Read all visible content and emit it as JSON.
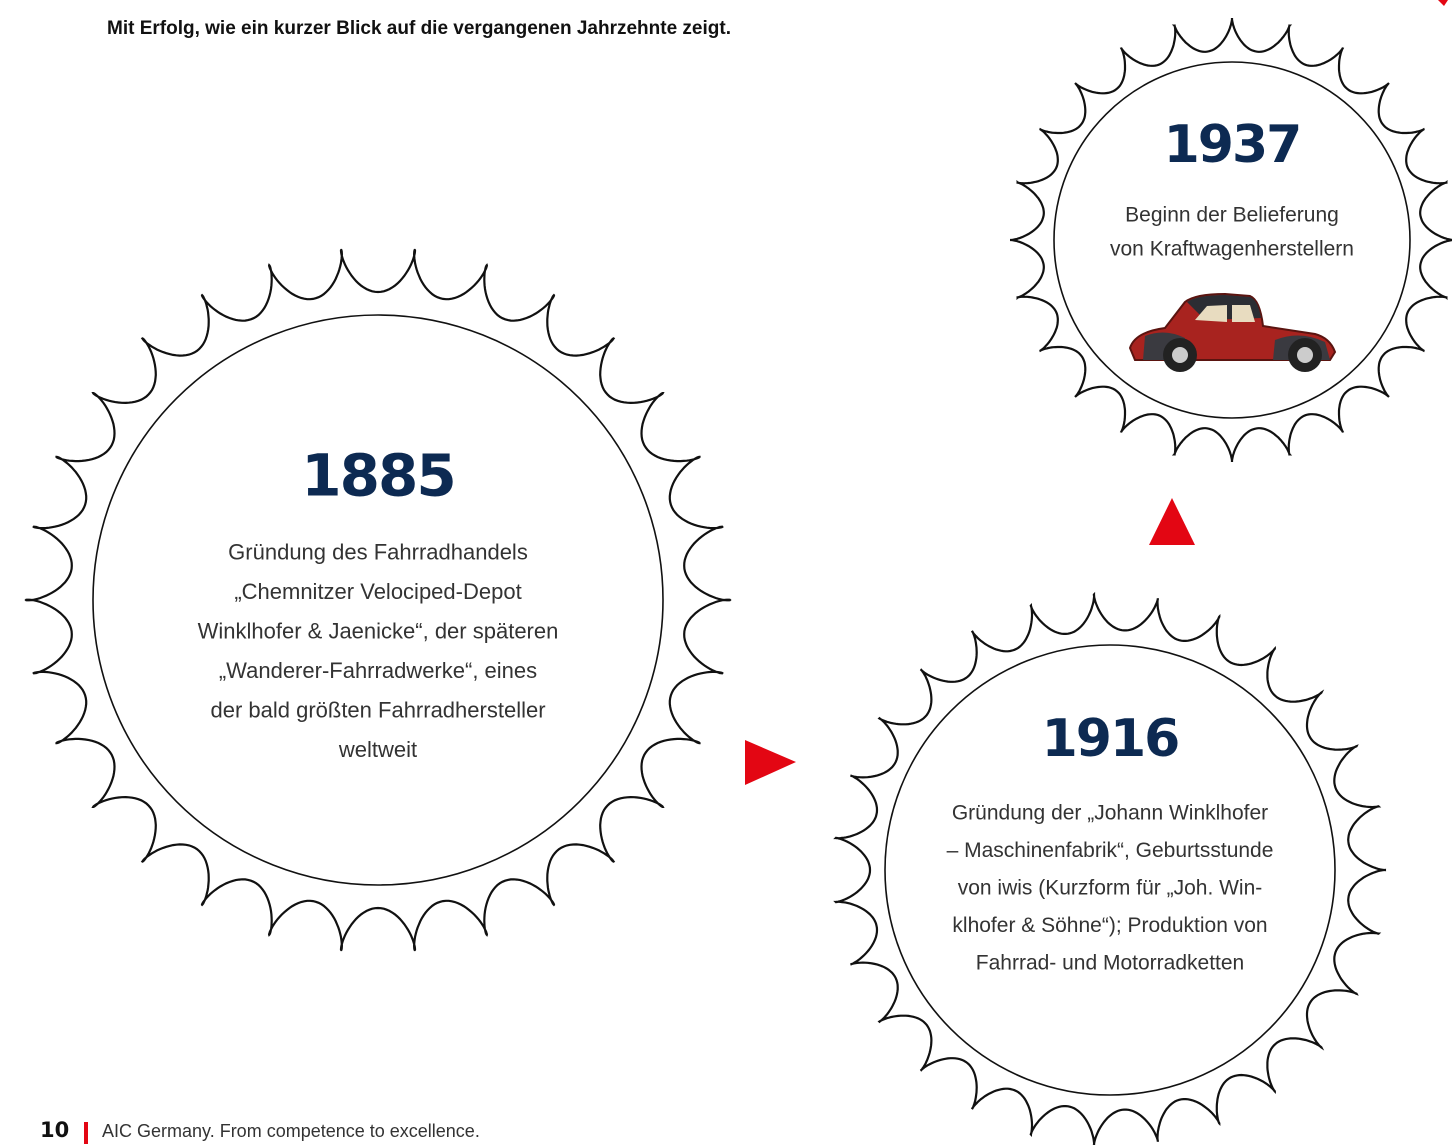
{
  "intro": "Mit Erfolg, wie ein kurzer Blick auf die vergangenen Jahrzehnte zeigt.",
  "milestones": [
    {
      "year": "1885",
      "lines": [
        "Gründung des Fahrradhandels",
        "„Chemnitzer Velociped-Depot",
        "Winklhofer & Jaenicke“, der späteren",
        "„Wanderer-Fahrradwerke“, eines",
        "der bald größten Fahrradhersteller",
        "weltweit"
      ]
    },
    {
      "year": "1916",
      "lines": [
        "Gründung der „Johann Winklhofer",
        "– Maschinenfabrik“, Geburtsstunde",
        "von iwis (Kurzform für „Joh. Win-",
        "klhofer & Söhne“); Produktion von",
        "Fahrrad- und Motorradketten"
      ]
    },
    {
      "year": "1937",
      "lines": [
        "Beginn der Belieferung",
        "von Kraftwagenherstellern"
      ]
    }
  ],
  "footer": {
    "page_number": "10",
    "tagline": "AIC Germany. From competence to excellence."
  }
}
